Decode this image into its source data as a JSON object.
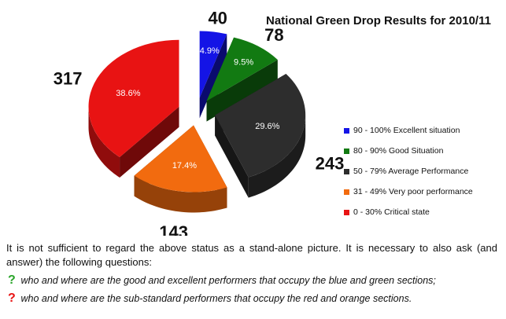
{
  "chart_data": {
    "type": "pie",
    "title": "National Green Drop Results for 2010/11",
    "slices": [
      {
        "label": "90 - 100% Excellent situation",
        "value": 40,
        "percent": "4.9%",
        "color": "#1414e6"
      },
      {
        "label": "80 - 90% Good Situation",
        "value": 78,
        "percent": "9.5%",
        "color": "#127a12"
      },
      {
        "label": "50 - 79% Average Performance",
        "value": 243,
        "percent": "29.6%",
        "color": "#2d2d2d"
      },
      {
        "label": "31 - 49% Very poor performance",
        "value": 143,
        "percent": "17.4%",
        "color": "#f26b0f"
      },
      {
        "label": "0 - 30% Critical state",
        "value": 317,
        "percent": "38.6%",
        "color": "#e81313"
      }
    ],
    "legend_position": "right"
  },
  "text": {
    "paragraph": "It is not sufficient to regard the above status as a stand-alone picture. It is necessary to also ask (and answer) the following questions:",
    "question_mark": "?",
    "q1": "who and where are the good and excellent performers that occupy the blue and green sections;",
    "q2": "who and where are the sub-standard performers that occupy the red and orange sections.",
    "q1_mark_color": "#2aa52a",
    "q2_mark_color": "#e81313"
  }
}
